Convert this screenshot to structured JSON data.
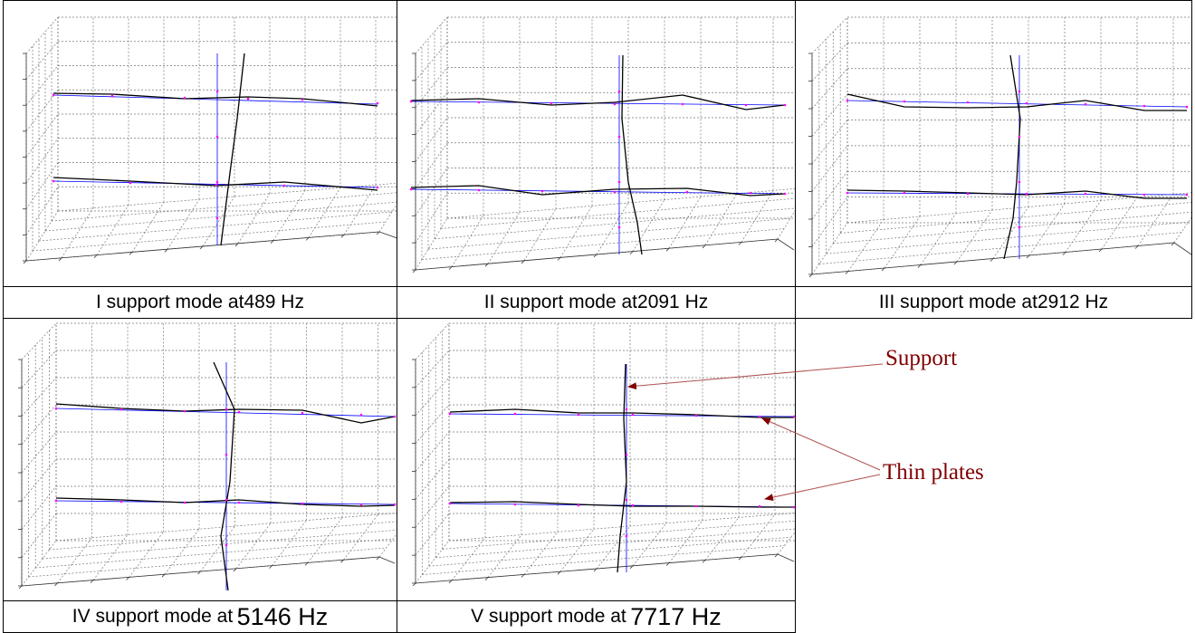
{
  "panels": [
    {
      "caption_prefix": "I support mode at ",
      "caption_value": "489 Hz",
      "caption_big": false
    },
    {
      "caption_prefix": "II support mode at ",
      "caption_value": "2091 Hz",
      "caption_big": false
    },
    {
      "caption_prefix": "III support mode at ",
      "caption_value": "2912 Hz",
      "caption_big": false
    },
    {
      "caption_prefix": "IV support mode at ",
      "caption_value": "5146 Hz",
      "caption_big": true
    },
    {
      "caption_prefix": "V support mode at ",
      "caption_value": "7717 Hz",
      "caption_big": true
    }
  ],
  "annotations": {
    "support_label": "Support",
    "thin_plates_label": "Thin plates"
  },
  "colors": {
    "deformed_line": "#000000",
    "undeformed_line": "#0000ff",
    "node_marker": "#ff00ff",
    "grid": "#777777",
    "annotation": "#800000"
  }
}
